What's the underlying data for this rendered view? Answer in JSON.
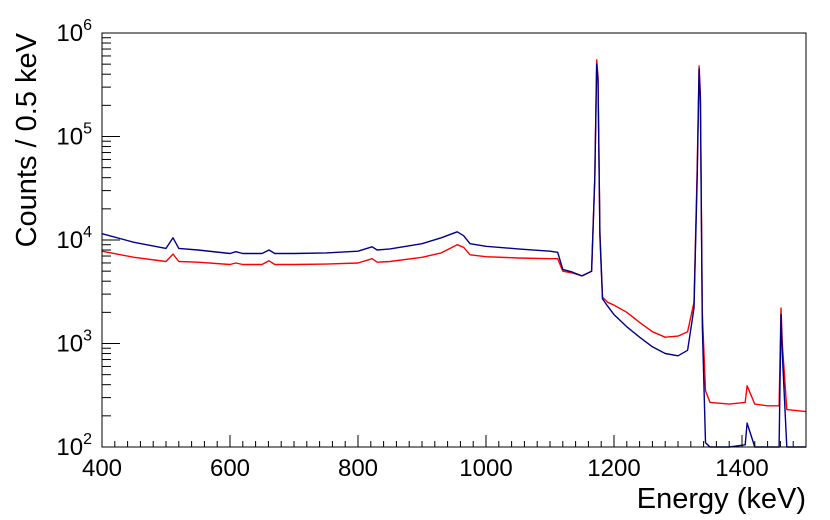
{
  "chart_data": {
    "type": "line",
    "title": "",
    "xlabel": "Energy (keV)",
    "ylabel": "Counts / 0.5 keV",
    "xlim": [
      400,
      1500
    ],
    "ylim": [
      100,
      1000000
    ],
    "yscale": "log",
    "x_ticks": [
      400,
      600,
      800,
      1000,
      1200,
      1400
    ],
    "x_tick_labels": [
      "400",
      "600",
      "800",
      "1000",
      "1200",
      "1400"
    ],
    "y_ticks": [
      {
        "value": 100,
        "base": "10",
        "exp": "2"
      },
      {
        "value": 1000,
        "base": "10",
        "exp": "3"
      },
      {
        "value": 10000,
        "base": "10",
        "exp": "4"
      },
      {
        "value": 100000,
        "base": "10",
        "exp": "5"
      },
      {
        "value": 1000000,
        "base": "10",
        "exp": "6"
      }
    ],
    "series": [
      {
        "name": "red spectrum",
        "color": "#ff0000",
        "x": [
          400,
          450,
          500,
          511,
          520,
          550,
          600,
          609,
          620,
          650,
          661,
          670,
          700,
          750,
          800,
          822,
          830,
          850,
          900,
          930,
          955,
          965,
          975,
          1000,
          1050,
          1100,
          1112,
          1120,
          1135,
          1150,
          1165,
          1170,
          1173,
          1175,
          1178,
          1182,
          1190,
          1200,
          1220,
          1240,
          1260,
          1280,
          1300,
          1315,
          1325,
          1330,
          1333,
          1335,
          1338,
          1343,
          1350,
          1380,
          1405,
          1408,
          1420,
          1440,
          1458,
          1461,
          1463,
          1470,
          1500
        ],
        "y": [
          7800,
          6800,
          6200,
          7300,
          6200,
          6100,
          5800,
          6000,
          5800,
          5800,
          6300,
          5800,
          5800,
          5850,
          6000,
          6600,
          6100,
          6200,
          6800,
          7500,
          9000,
          8500,
          7200,
          6900,
          6700,
          6600,
          6600,
          5000,
          4800,
          4500,
          5000,
          40000,
          550000,
          380000,
          12000,
          2800,
          2500,
          2350,
          2000,
          1600,
          1300,
          1150,
          1180,
          1300,
          2500,
          50000,
          480000,
          250000,
          2000,
          350,
          270,
          260,
          270,
          390,
          260,
          250,
          250,
          2200,
          1000,
          230,
          220
        ]
      },
      {
        "name": "blue spectrum",
        "color": "#00008b",
        "x": [
          400,
          450,
          500,
          511,
          520,
          550,
          600,
          609,
          620,
          650,
          661,
          670,
          700,
          750,
          800,
          822,
          830,
          850,
          900,
          930,
          955,
          965,
          975,
          1000,
          1050,
          1100,
          1112,
          1120,
          1135,
          1150,
          1165,
          1170,
          1173,
          1175,
          1178,
          1182,
          1190,
          1200,
          1220,
          1240,
          1260,
          1280,
          1300,
          1315,
          1325,
          1330,
          1333,
          1335,
          1338,
          1343,
          1350,
          1380,
          1405,
          1408,
          1420,
          1440,
          1458,
          1461,
          1463,
          1470,
          1500
        ],
        "y": [
          11500,
          9500,
          8300,
          10500,
          8300,
          8000,
          7400,
          7700,
          7400,
          7400,
          8000,
          7400,
          7400,
          7500,
          7800,
          8600,
          8000,
          8200,
          9200,
          10500,
          12000,
          11000,
          9200,
          8700,
          8200,
          7800,
          7600,
          5200,
          4900,
          4500,
          5000,
          40000,
          500000,
          350000,
          11000,
          2700,
          2300,
          1900,
          1450,
          1150,
          930,
          800,
          760,
          860,
          2200,
          40000,
          450000,
          220000,
          1500,
          110,
          100,
          100,
          105,
          170,
          100,
          100,
          100,
          1900,
          800,
          100,
          100
        ]
      }
    ]
  }
}
